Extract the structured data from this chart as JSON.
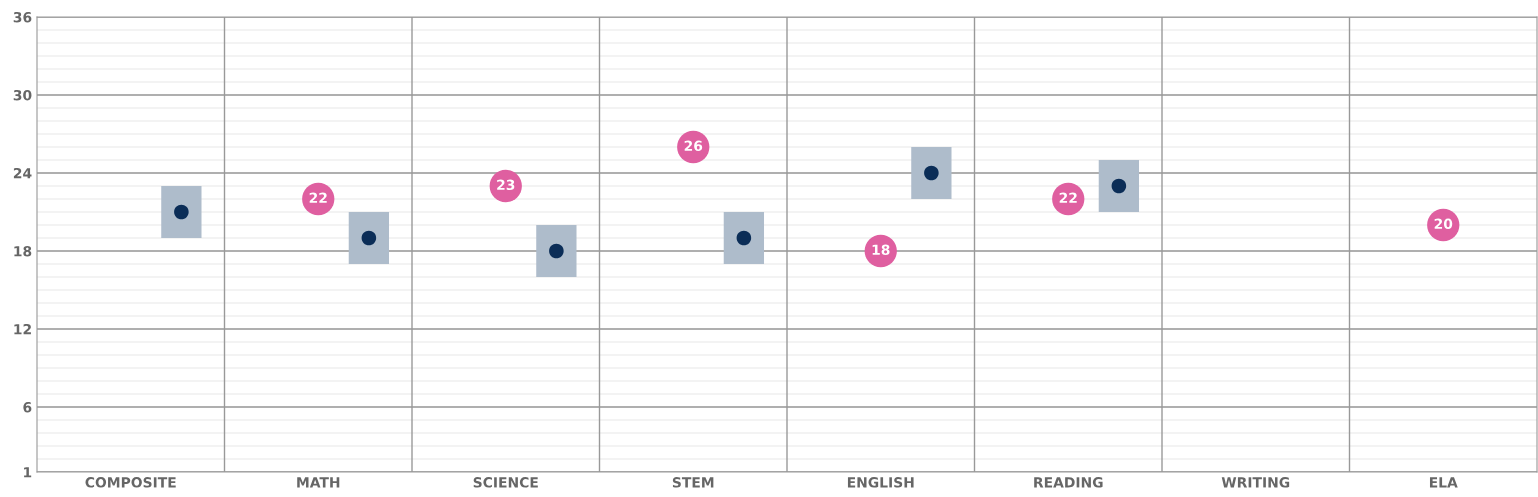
{
  "chart_data": {
    "type": "scatter",
    "categories": [
      "COMPOSITE",
      "MATH",
      "SCIENCE",
      "STEM",
      "ENGLISH",
      "READING",
      "WRITING",
      "ELA"
    ],
    "ylim": [
      1,
      36
    ],
    "yticks": [
      1,
      6,
      12,
      18,
      24,
      30,
      36
    ],
    "grid": true,
    "legend": false,
    "marker": "circle",
    "series": [
      {
        "color": "#df5fa0",
        "values": [
          null,
          22,
          23,
          26,
          18,
          22,
          null,
          20
        ],
        "data_labels": true
      },
      {
        "color": "#0b2d57",
        "values": [
          21,
          19,
          18,
          19,
          24,
          23,
          null,
          null
        ],
        "errors": [
          2,
          2,
          2,
          2,
          2,
          2,
          null,
          null
        ]
      }
    ]
  }
}
